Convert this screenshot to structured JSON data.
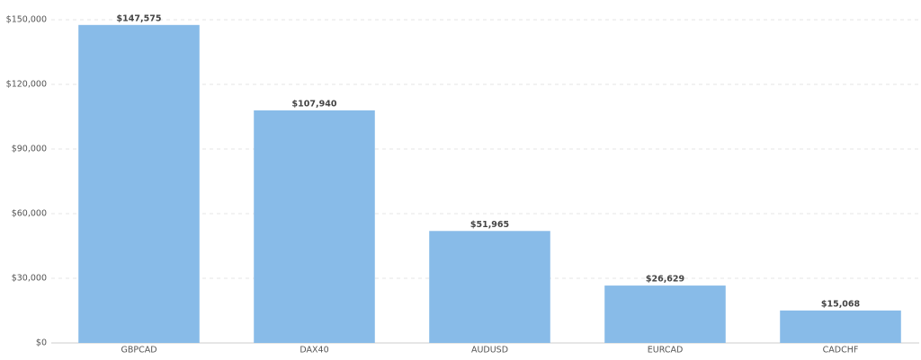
{
  "chart_data": {
    "type": "bar",
    "categories": [
      "GBPCAD",
      "DAX40",
      "AUDUSD",
      "EURCAD",
      "CADCHF"
    ],
    "values": [
      147575,
      107940,
      51965,
      26629,
      15068
    ],
    "value_labels": [
      "$147,575",
      "$107,940",
      "$51,965",
      "$26,629",
      "$15,068"
    ],
    "color": "#88bbe8",
    "ylim": [
      0,
      150000
    ],
    "yticks": [
      {
        "value": 0,
        "label": "$0"
      },
      {
        "value": 30000,
        "label": "$30,000"
      },
      {
        "value": 60000,
        "label": "$60,000"
      },
      {
        "value": 90000,
        "label": "$90,000"
      },
      {
        "value": 120000,
        "label": "$120,000"
      },
      {
        "value": 150000,
        "label": "$150,000"
      }
    ],
    "grid": true
  }
}
